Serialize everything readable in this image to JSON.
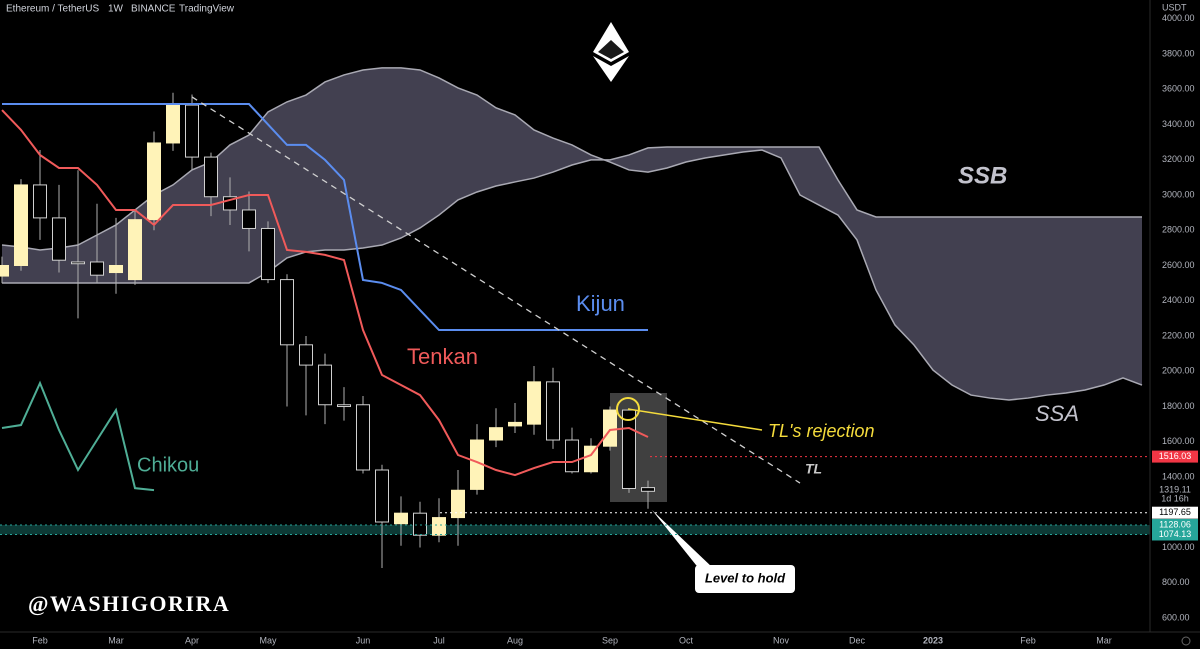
{
  "header": {
    "symbol": "Ethereum / TetherUS",
    "interval": "1W",
    "exchange": "BINANCE",
    "platform": "TradingView",
    "currency": "USDT"
  },
  "chart_data": {
    "type": "candlestick",
    "categories": [
      null,
      null,
      "Feb",
      null,
      null,
      null,
      "Mar",
      null,
      null,
      null,
      "Apr",
      null,
      null,
      null,
      "May",
      null,
      null,
      null,
      null,
      "Jun",
      null,
      null,
      null,
      "Jul",
      null,
      null,
      null,
      "Aug",
      null,
      null,
      null,
      null,
      "Sep",
      null,
      null,
      null,
      "Oct",
      null,
      null,
      null,
      null,
      "Nov",
      null,
      null,
      null,
      "Dec",
      null,
      null,
      null,
      "2023",
      null,
      null,
      null,
      null,
      "Feb",
      null,
      null,
      null,
      "Mar",
      null,
      null
    ],
    "open": [
      2540,
      2600,
      3057,
      2870,
      2620,
      2620,
      2560,
      2520,
      2860,
      3295,
      3510,
      3215,
      2990,
      2915,
      2810,
      2520,
      2150,
      2035,
      1810,
      1810,
      1440,
      1135,
      1195,
      1070,
      1170,
      1330,
      1610,
      1690,
      1700,
      1940,
      1610,
      1430,
      1575,
      1780,
      1340,
      null,
      null,
      null,
      null,
      null,
      null,
      null,
      null,
      null,
      null,
      null,
      null,
      null,
      null,
      null,
      null,
      null,
      null,
      null,
      null,
      null,
      null,
      null,
      null,
      null,
      null
    ],
    "high": [
      2650,
      3090,
      3255,
      3057,
      3140,
      2950,
      2870,
      2920,
      3360,
      3580,
      3570,
      3240,
      3100,
      3020,
      2850,
      2550,
      2200,
      2100,
      1910,
      1860,
      1470,
      1290,
      1260,
      1280,
      1440,
      1700,
      1790,
      1820,
      2030,
      2020,
      1680,
      1620,
      1800,
      1790,
      1380,
      null,
      null,
      null,
      null,
      null,
      null,
      null,
      null,
      null,
      null,
      null,
      null,
      null,
      null,
      null,
      null,
      null,
      null,
      null,
      null,
      null,
      null,
      null,
      null,
      null,
      null
    ],
    "low": [
      2500,
      2570,
      2745,
      2560,
      2300,
      2500,
      2440,
      2490,
      2800,
      3250,
      3140,
      2880,
      2830,
      2680,
      2500,
      1800,
      1750,
      1700,
      1720,
      1420,
      884,
      1010,
      1000,
      1030,
      1010,
      1300,
      1570,
      1650,
      1640,
      1560,
      1420,
      1420,
      1550,
      1310,
      1220,
      null,
      null,
      null,
      null,
      null,
      null,
      null,
      null,
      null,
      null,
      null,
      null,
      null,
      null,
      null,
      null,
      null,
      null,
      null,
      null,
      null,
      null,
      null,
      null,
      null,
      null
    ],
    "close": [
      2600,
      3057,
      2870,
      2630,
      2610,
      2545,
      2600,
      2860,
      3295,
      3510,
      3215,
      2990,
      2915,
      2810,
      2520,
      2150,
      2035,
      1810,
      1800,
      1440,
      1145,
      1195,
      1070,
      1170,
      1325,
      1610,
      1680,
      1710,
      1940,
      1610,
      1430,
      1575,
      1780,
      1335,
      1319.11,
      null,
      null,
      null,
      null,
      null,
      null,
      null,
      null,
      null,
      null,
      null,
      null,
      null,
      null,
      null,
      null,
      null,
      null,
      null,
      null,
      null,
      null,
      null,
      null,
      null,
      null
    ],
    "up_color": "#fff3b8",
    "down_color": "#000000",
    "wick_color": "#b0b0b0",
    "series": [
      {
        "name": "Tenkan",
        "color": "#f05a5a",
        "values": [
          3482,
          3369,
          3227,
          3153,
          3153,
          3057,
          2915,
          2915,
          2830,
          2943,
          2943,
          2943,
          2972,
          3000,
          3000,
          2688,
          2677,
          2660,
          2631,
          2234,
          1979,
          1922,
          1865,
          1723,
          1525,
          1485,
          1440,
          1411,
          1451,
          1485,
          1485,
          1525,
          1667,
          1678,
          1627,
          null,
          null,
          null,
          null,
          null,
          null,
          null,
          null,
          null,
          null,
          null,
          null,
          null,
          null,
          null,
          null,
          null,
          null,
          null,
          null,
          null,
          null,
          null,
          null,
          null,
          null
        ]
      },
      {
        "name": "Kijun",
        "color": "#5b8def",
        "values": [
          3516,
          3516,
          3516,
          3516,
          3516,
          3516,
          3516,
          3516,
          3516,
          3516,
          3516,
          3516,
          3516,
          3516,
          3400,
          3284,
          3284,
          3199,
          3085,
          2518,
          2501,
          2461,
          2347,
          2234,
          2234,
          2234,
          2234,
          2234,
          2234,
          2234,
          2234,
          2234,
          2234,
          2234,
          2234,
          null,
          null,
          null,
          null,
          null,
          null,
          null,
          null,
          null,
          null,
          null,
          null,
          null,
          null,
          null,
          null,
          null,
          null,
          null,
          null,
          null,
          null,
          null,
          null,
          null,
          null
        ]
      },
      {
        "name": "Chikou",
        "color": "#4fae96",
        "values": [
          1678,
          1695,
          1933,
          1667,
          1440,
          1610,
          1780,
          1337,
          1326,
          null,
          null,
          null,
          null,
          null,
          null,
          null,
          null,
          null,
          null,
          null,
          null,
          null,
          null,
          null,
          null,
          null,
          null,
          null,
          null,
          null,
          null,
          null,
          null,
          null,
          null,
          null,
          null,
          null,
          null,
          null,
          null,
          null,
          null,
          null,
          null,
          null,
          null,
          null,
          null,
          null,
          null,
          null,
          null,
          null,
          null,
          null,
          null,
          null,
          null,
          null,
          null
        ]
      },
      {
        "name": "SSA",
        "color": "#a9a9b3",
        "cloud": true,
        "values": [
          2716,
          2705,
          2688,
          2699,
          2716,
          2773,
          2830,
          2915,
          3000,
          3057,
          3142,
          3187,
          3284,
          3340,
          3471,
          3528,
          3567,
          3641,
          3681,
          3709,
          3721,
          3721,
          3709,
          3664,
          3607,
          3567,
          3494,
          3454,
          3369,
          3323,
          3284,
          3227,
          3187,
          3142,
          3130,
          3153,
          3187,
          3210,
          3227,
          3244,
          3255,
          3210,
          3000,
          2943,
          2886,
          2745,
          2461,
          2262,
          2149,
          2007,
          1922,
          1865,
          1848,
          1837,
          1848,
          1865,
          1877,
          1894,
          1922,
          1962,
          1922
        ]
      },
      {
        "name": "SSB",
        "color": "#a9a9b3",
        "cloud": true,
        "values": [
          2501,
          2501,
          2501,
          2501,
          2501,
          2501,
          2501,
          2501,
          2501,
          2501,
          2501,
          2501,
          2501,
          2501,
          2563,
          2643,
          2677,
          2688,
          2688,
          2699,
          2716,
          2756,
          2813,
          2886,
          2972,
          3017,
          3051,
          3074,
          3096,
          3130,
          3170,
          3199,
          3199,
          3227,
          3267,
          3272,
          3272,
          3272,
          3272,
          3272,
          3272,
          3272,
          3272,
          3272,
          3085,
          2915,
          2875,
          2875,
          2875,
          2875,
          2875,
          2875,
          2875,
          2875,
          2875,
          2875,
          2875,
          2875,
          2875,
          2875,
          2875
        ]
      },
      {
        "name": "TL",
        "color": "#d0d0d0",
        "dashed": true,
        "values": [
          null,
          null,
          null,
          null,
          null,
          null,
          null,
          null,
          null,
          null,
          3556,
          null,
          null,
          null,
          null,
          null,
          null,
          null,
          null,
          null,
          null,
          null,
          null,
          null,
          null,
          null,
          null,
          null,
          null,
          null,
          null,
          null,
          null,
          null,
          null,
          null,
          null,
          null,
          null,
          null,
          null,
          null,
          1366,
          null,
          null,
          null,
          null,
          null,
          null,
          null,
          null,
          null,
          null,
          null,
          null,
          null,
          null,
          null,
          null,
          null,
          null
        ]
      }
    ],
    "cloud_color": "rgba(120,116,145,0.55)",
    "ylim": [
      521,
      4106
    ],
    "yticks": [
      {
        "value": 4000,
        "label": "4000.00"
      },
      {
        "value": 3800,
        "label": "3800.00"
      },
      {
        "value": 3600,
        "label": "3600.00"
      },
      {
        "value": 3400,
        "label": "3400.00"
      },
      {
        "value": 3200,
        "label": "3200.00"
      },
      {
        "value": 3000,
        "label": "3000.00"
      },
      {
        "value": 2800,
        "label": "2800.00"
      },
      {
        "value": 2600,
        "label": "2600.00"
      },
      {
        "value": 2400,
        "label": "2400.00"
      },
      {
        "value": 2200,
        "label": "2200.00"
      },
      {
        "value": 2000,
        "label": "2000.00"
      },
      {
        "value": 1800,
        "label": "1800.00"
      },
      {
        "value": 1600,
        "label": "1600.00"
      },
      {
        "value": 1400,
        "label": "1400.00"
      },
      {
        "value": 1000,
        "label": "1000.00"
      },
      {
        "value": 800,
        "label": "800.00"
      },
      {
        "value": 600,
        "label": "600.00"
      }
    ],
    "grid": false,
    "price_lines": [
      {
        "value": 1516.03,
        "color": "#f23645",
        "text_color": "#ffffff"
      },
      {
        "value": 1197.65,
        "color": "#ffffff",
        "text_color": "#000000"
      },
      {
        "value": 1128.06,
        "color": "#26a69a",
        "text_color": "#ffffff"
      },
      {
        "value": 1074.13,
        "color": "#26a69a",
        "text_color": "#ffffff"
      }
    ],
    "current_price": {
      "value": 1319.11,
      "countdown": "1d 16h"
    },
    "annotations": {
      "rejection": "TL's rejection",
      "level": "Level to hold",
      "watermark": "@WASHIGORIRA"
    }
  }
}
